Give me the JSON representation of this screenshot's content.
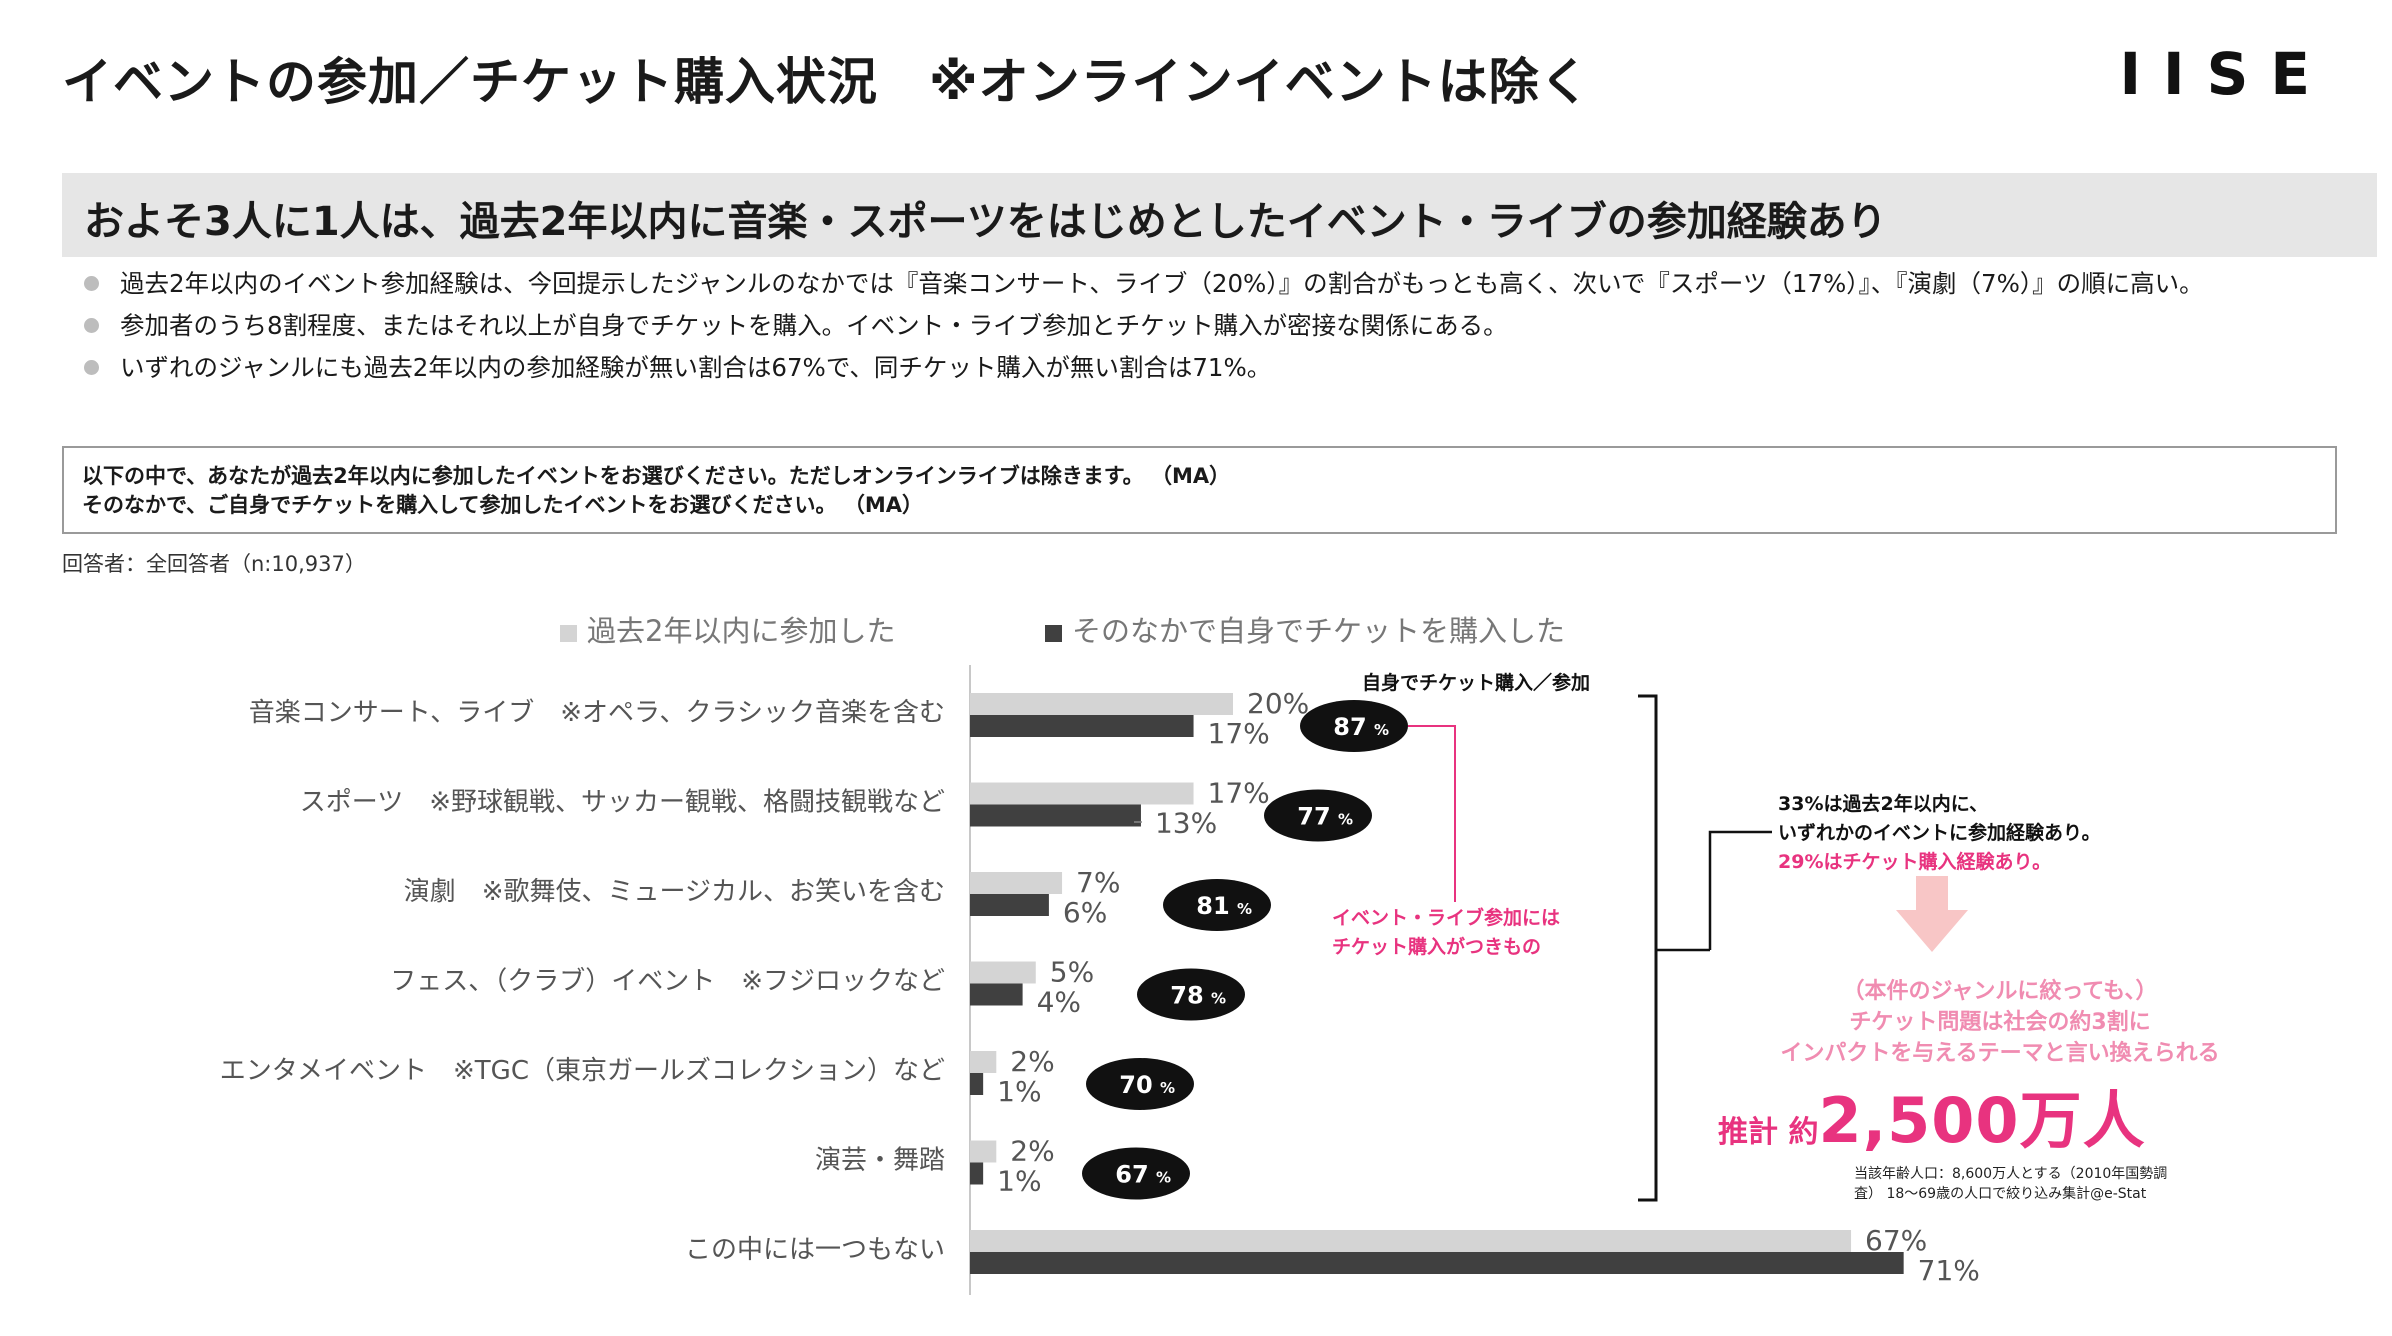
{
  "title": "イベントの参加／チケット購入状況　※オンラインイベントは除く",
  "logo": "IISE",
  "headline": "およそ3人に1人は、過去2年以内に音楽・スポーツをはじめとしたイベント・ライブの参加経験あり",
  "bullets": [
    "過去2年以内のイベント参加経験は、今回提示したジャンルのなかでは『音楽コンサート、ライブ（20%）』の割合がもっとも高く、次いで『スポーツ（17%）』、『演劇（7%）』の順に高い。",
    "参加者のうち8割程度、またはそれ以上が自身でチケットを購入。イベント・ライブ参加とチケット購入が密接な関係にある。",
    "いずれのジャンルにも過去2年以内の参加経験が無い割合は67%で、同チケット購入が無い割合は71%。"
  ],
  "question": {
    "line1": "以下の中で、あなたが過去2年以内に参加したイベントをお選びください。ただしオンラインライブは除きます。 （MA）",
    "line2": "そのなかで、ご自身でチケットを購入して参加したイベントをお選びください。 （MA）"
  },
  "respondents": "回答者：全回答者（n:10,937）",
  "colors": {
    "light": "#d4d4d4",
    "dark": "#404040",
    "pink": "#e8337f",
    "pink_light": "#f08cb1",
    "arrow": "#f8c6c6"
  },
  "chart_data": {
    "type": "bar",
    "orientation": "horizontal",
    "categories": [
      "音楽コンサート、ライブ　※オペラ、クラシック音楽を含む",
      "スポーツ　※野球観戦、サッカー観戦、格闘技観戦など",
      "演劇　※歌舞伎、ミュージカル、お笑いを含む",
      "フェス、（クラブ）イベント　※フジロックなど",
      "エンタメイベント　※TGC（東京ガールズコレクション）など",
      "演芸・舞踏",
      "この中には一つもない"
    ],
    "series": [
      {
        "name": "過去2年以内に参加した",
        "values": [
          20,
          17,
          7,
          5,
          2,
          2,
          67
        ],
        "labels": [
          "20%",
          "17%",
          "7%",
          "5%",
          "2%",
          "2%",
          "67%"
        ]
      },
      {
        "name": "そのなかで自身でチケットを購入した",
        "values": [
          17,
          13,
          6,
          4,
          1,
          1,
          71
        ],
        "labels": [
          "17%",
          "13%",
          "6%",
          "4%",
          "1%",
          "1%",
          "71%"
        ]
      }
    ],
    "ratio_header": "自身でチケット購入／参加",
    "ratios": [
      87,
      77,
      81,
      78,
      70,
      67
    ],
    "ratio_unit": "%",
    "legend_position": "top",
    "grid": false
  },
  "annotations": {
    "pink_note": [
      "イベント・ライブ参加には",
      "チケット購入がつきもの"
    ],
    "right_note": [
      "33%は過去2年以内に、",
      "いずれかのイベントに参加経験あり。",
      "29%はチケット購入経験あり。"
    ],
    "impact_note": [
      "（本件のジャンルに絞っても、）",
      "チケット問題は社会の約3割に",
      "インパクトを与えるテーマと言い換えられる"
    ],
    "estimate_prefix": "推計 約",
    "estimate_value": "2,500万人",
    "source_note": [
      "当該年齢人口：8,600万人とする（2010年国勢調",
      "査） 18～69歳の人口で絞り込み集計@e-Stat"
    ]
  }
}
